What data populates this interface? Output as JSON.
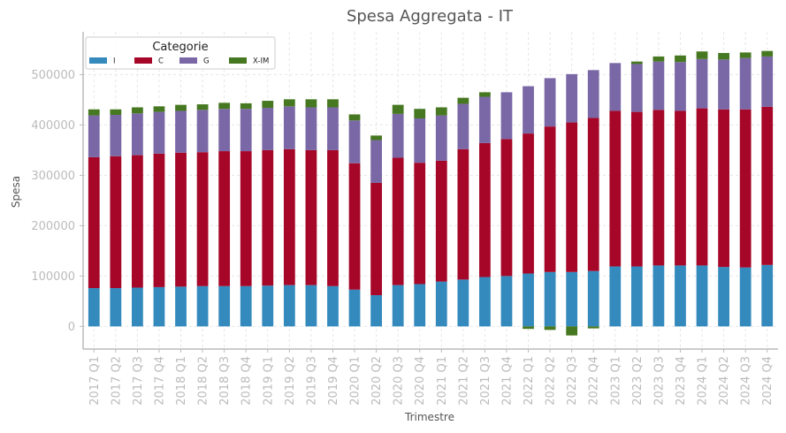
{
  "chart_data": {
    "type": "bar",
    "stacked": true,
    "title": "Spesa Aggregata - IT",
    "xlabel": "Trimestre",
    "ylabel": "Spesa",
    "ylim": [
      -45000,
      585000
    ],
    "yticks": [
      0,
      100000,
      200000,
      300000,
      400000,
      500000
    ],
    "grid": true,
    "legend": {
      "title": "Categorie",
      "placement": "top-left"
    },
    "categories": [
      "2017 Q1",
      "2017 Q2",
      "2017 Q3",
      "2017 Q4",
      "2018 Q1",
      "2018 Q2",
      "2018 Q3",
      "2018 Q4",
      "2019 Q1",
      "2019 Q2",
      "2019 Q3",
      "2019 Q4",
      "2020 Q1",
      "2020 Q2",
      "2020 Q3",
      "2020 Q4",
      "2021 Q1",
      "2021 Q2",
      "2021 Q3",
      "2021 Q4",
      "2022 Q1",
      "2022 Q2",
      "2022 Q3",
      "2022 Q4",
      "2023 Q1",
      "2023 Q2",
      "2023 Q3",
      "2023 Q4",
      "2024 Q1",
      "2024 Q2",
      "2024 Q3",
      "2024 Q4"
    ],
    "series": [
      {
        "name": "I",
        "color": "#348abd",
        "values": [
          76000,
          76000,
          77000,
          78000,
          79000,
          80000,
          80000,
          80000,
          81000,
          82000,
          82000,
          80000,
          73000,
          62000,
          82000,
          84000,
          89000,
          93000,
          98000,
          100000,
          105000,
          108000,
          108000,
          110000,
          119000,
          119000,
          121000,
          121000,
          121000,
          118000,
          117000,
          122000
        ]
      },
      {
        "name": "C",
        "color": "#a60628",
        "values": [
          260000,
          262000,
          263000,
          265000,
          266000,
          266000,
          268000,
          268000,
          269000,
          270000,
          268000,
          270000,
          251000,
          223000,
          253000,
          241000,
          240000,
          259000,
          266000,
          272000,
          278000,
          289000,
          297000,
          304000,
          309000,
          307000,
          309000,
          307000,
          312000,
          313000,
          314000,
          314000
        ]
      },
      {
        "name": "G",
        "color": "#7a68a6",
        "values": [
          83000,
          82000,
          83000,
          83000,
          83000,
          84000,
          84000,
          84000,
          84000,
          85000,
          85000,
          85000,
          85000,
          85000,
          87000,
          88000,
          90000,
          90000,
          92000,
          93000,
          94000,
          96000,
          96000,
          95000,
          95000,
          95000,
          96000,
          97000,
          98000,
          99000,
          102000,
          100000
        ]
      },
      {
        "name": "X-IM",
        "color": "#467821",
        "values": [
          12000,
          11000,
          12000,
          11000,
          12000,
          11000,
          12000,
          11000,
          14000,
          14000,
          16000,
          16000,
          12000,
          9000,
          18000,
          19000,
          16000,
          12000,
          9000,
          0,
          -5000,
          -7000,
          -18000,
          -4000,
          0,
          5000,
          10000,
          13000,
          15000,
          13000,
          11000,
          11000
        ]
      }
    ]
  }
}
